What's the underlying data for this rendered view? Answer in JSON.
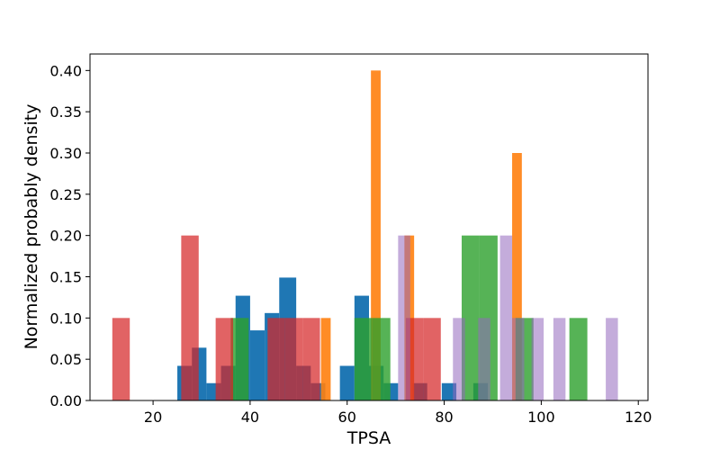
{
  "chart_data": {
    "type": "bar",
    "xlabel": "TPSA",
    "ylabel": "Normalized probably density",
    "xlim": [
      7,
      122
    ],
    "ylim": [
      0,
      0.42
    ],
    "xticks": [
      "20",
      "40",
      "60",
      "80",
      "100",
      "120"
    ],
    "yticks": [
      "0.00",
      "0.05",
      "0.10",
      "0.15",
      "0.20",
      "0.25",
      "0.30",
      "0.35",
      "0.40"
    ],
    "grid": false,
    "legend": false,
    "series": [
      {
        "color": "#1f77b4",
        "opacity": 1.0,
        "bars": [
          {
            "x0": 25.0,
            "x1": 28.0,
            "value": 0.042
          },
          {
            "x0": 28.0,
            "x1": 31.0,
            "value": 0.064
          },
          {
            "x0": 31.0,
            "x1": 34.0,
            "value": 0.021
          },
          {
            "x0": 34.0,
            "x1": 37.0,
            "value": 0.042
          },
          {
            "x0": 37.0,
            "x1": 40.0,
            "value": 0.127
          },
          {
            "x0": 40.0,
            "x1": 43.0,
            "value": 0.085
          },
          {
            "x0": 43.0,
            "x1": 46.0,
            "value": 0.106
          },
          {
            "x0": 46.0,
            "x1": 49.5,
            "value": 0.149
          },
          {
            "x0": 49.5,
            "x1": 52.5,
            "value": 0.042
          },
          {
            "x0": 52.5,
            "x1": 55.5,
            "value": 0.021
          },
          {
            "x0": 55.5,
            "x1": 58.5,
            "value": 0.0
          },
          {
            "x0": 58.5,
            "x1": 61.5,
            "value": 0.042
          },
          {
            "x0": 61.5,
            "x1": 64.5,
            "value": 0.127
          },
          {
            "x0": 64.5,
            "x1": 67.5,
            "value": 0.042
          },
          {
            "x0": 67.5,
            "x1": 70.5,
            "value": 0.021
          },
          {
            "x0": 70.5,
            "x1": 73.5,
            "value": 0.0
          },
          {
            "x0": 73.5,
            "x1": 76.5,
            "value": 0.021
          },
          {
            "x0": 76.5,
            "x1": 79.5,
            "value": 0.0
          },
          {
            "x0": 79.5,
            "x1": 82.5,
            "value": 0.021
          },
          {
            "x0": 86.0,
            "x1": 89.0,
            "value": 0.021
          }
        ]
      },
      {
        "color": "#ff7f0e",
        "opacity": 0.9,
        "bars": [
          {
            "x0": 54.6,
            "x1": 56.6,
            "value": 0.1
          },
          {
            "x0": 64.9,
            "x1": 66.9,
            "value": 0.4
          },
          {
            "x0": 71.8,
            "x1": 73.8,
            "value": 0.2
          },
          {
            "x0": 94.0,
            "x1": 96.0,
            "value": 0.3
          }
        ]
      },
      {
        "color": "#2ca02c",
        "opacity": 0.8,
        "bars": [
          {
            "x0": 36.0,
            "x1": 39.7,
            "value": 0.1
          },
          {
            "x0": 61.5,
            "x1": 65.2,
            "value": 0.1
          },
          {
            "x0": 65.2,
            "x1": 68.9,
            "value": 0.1
          },
          {
            "x0": 83.6,
            "x1": 87.3,
            "value": 0.2
          },
          {
            "x0": 87.3,
            "x1": 91.0,
            "value": 0.2
          },
          {
            "x0": 94.7,
            "x1": 98.4,
            "value": 0.1
          },
          {
            "x0": 105.8,
            "x1": 109.5,
            "value": 0.1
          }
        ]
      },
      {
        "color": "#d62728",
        "opacity": 0.72,
        "bars": [
          {
            "x0": 11.6,
            "x1": 15.2,
            "value": 0.1
          },
          {
            "x0": 25.8,
            "x1": 29.4,
            "value": 0.2
          },
          {
            "x0": 32.9,
            "x1": 36.5,
            "value": 0.1
          },
          {
            "x0": 43.6,
            "x1": 47.2,
            "value": 0.1
          },
          {
            "x0": 47.2,
            "x1": 50.8,
            "value": 0.1
          },
          {
            "x0": 50.8,
            "x1": 54.4,
            "value": 0.1
          },
          {
            "x0": 72.1,
            "x1": 75.7,
            "value": 0.1
          },
          {
            "x0": 75.7,
            "x1": 79.3,
            "value": 0.1
          }
        ]
      },
      {
        "color": "#9467bd",
        "opacity": 0.55,
        "bars": [
          {
            "x0": 70.5,
            "x1": 73.0,
            "value": 0.2
          },
          {
            "x0": 81.8,
            "x1": 84.3,
            "value": 0.1
          },
          {
            "x0": 87.0,
            "x1": 89.5,
            "value": 0.1
          },
          {
            "x0": 91.5,
            "x1": 94.0,
            "value": 0.2
          },
          {
            "x0": 94.0,
            "x1": 96.5,
            "value": 0.1
          },
          {
            "x0": 98.0,
            "x1": 100.5,
            "value": 0.1
          },
          {
            "x0": 102.5,
            "x1": 105.0,
            "value": 0.1
          },
          {
            "x0": 113.3,
            "x1": 115.8,
            "value": 0.1
          }
        ]
      }
    ]
  }
}
